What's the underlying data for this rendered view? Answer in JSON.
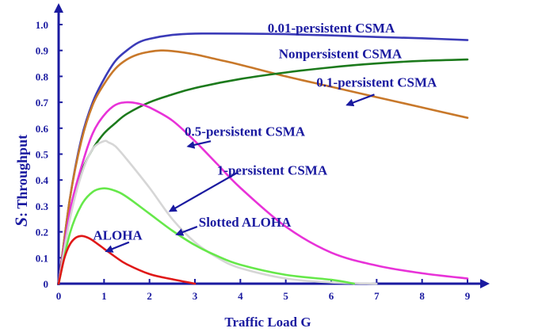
{
  "chart_data": {
    "type": "line",
    "xlabel": "Traffic Load G",
    "ylabel_s": "S",
    "ylabel_rest": ": Throughput",
    "xlim": [
      0,
      9
    ],
    "ylim": [
      0,
      1.0
    ],
    "x_ticks": [
      "0",
      "1",
      "2",
      "3",
      "4",
      "5",
      "6",
      "7",
      "8",
      "9"
    ],
    "y_ticks": [
      "0",
      "0.1",
      "0.2",
      "0.3",
      "0.4",
      "0.5",
      "0.6",
      "0.7",
      "0.8",
      "0.9",
      "1.0"
    ],
    "grid": false,
    "series": [
      {
        "id": "p001",
        "color": "#3b3bb8",
        "x": [
          0,
          0.25,
          0.5,
          0.75,
          1.0,
          1.25,
          1.5,
          1.75,
          2.0,
          2.5,
          3.0,
          4.0,
          5.0,
          6.0,
          7.0,
          8.0,
          9.0
        ],
        "y": [
          0,
          0.33,
          0.56,
          0.7,
          0.79,
          0.86,
          0.9,
          0.93,
          0.945,
          0.96,
          0.965,
          0.965,
          0.963,
          0.958,
          0.952,
          0.947,
          0.94
        ]
      },
      {
        "id": "nonpersistent",
        "color": "#c8782a",
        "x": [
          0,
          0.25,
          0.5,
          0.75,
          1.0,
          1.25,
          1.5,
          1.75,
          2.0,
          2.25,
          2.5,
          3.0,
          3.5,
          4.0,
          5.0,
          6.0,
          7.0,
          8.0,
          9.0
        ],
        "y": [
          0,
          0.33,
          0.55,
          0.69,
          0.77,
          0.83,
          0.865,
          0.885,
          0.895,
          0.9,
          0.898,
          0.885,
          0.865,
          0.845,
          0.8,
          0.76,
          0.72,
          0.68,
          0.64
        ]
      },
      {
        "id": "p01",
        "color": "#1c7a1c",
        "x": [
          0,
          0.25,
          0.5,
          0.75,
          1.0,
          1.25,
          1.5,
          2.0,
          2.5,
          3.0,
          4.0,
          5.0,
          6.0,
          7.0,
          8.0,
          9.0
        ],
        "y": [
          0,
          0.28,
          0.43,
          0.52,
          0.58,
          0.62,
          0.655,
          0.7,
          0.73,
          0.755,
          0.79,
          0.815,
          0.835,
          0.85,
          0.86,
          0.865
        ]
      },
      {
        "id": "p05",
        "color": "#e832d8",
        "x": [
          0,
          0.25,
          0.5,
          0.75,
          1.0,
          1.25,
          1.5,
          1.75,
          2.0,
          2.5,
          3.0,
          3.5,
          4.0,
          5.0,
          6.0,
          7.0,
          8.0,
          9.0
        ],
        "y": [
          0,
          0.28,
          0.45,
          0.58,
          0.65,
          0.69,
          0.7,
          0.695,
          0.68,
          0.63,
          0.55,
          0.46,
          0.37,
          0.22,
          0.12,
          0.07,
          0.04,
          0.02
        ]
      },
      {
        "id": "p1",
        "color": "#d6d6d6",
        "x": [
          0,
          0.25,
          0.5,
          0.75,
          1.0,
          1.1,
          1.25,
          1.5,
          2.0,
          2.5,
          3.0,
          3.5,
          4.0,
          5.0,
          6.0,
          7.0
        ],
        "y": [
          0,
          0.25,
          0.42,
          0.52,
          0.55,
          0.545,
          0.53,
          0.48,
          0.37,
          0.25,
          0.16,
          0.1,
          0.06,
          0.02,
          0.005,
          0
        ]
      },
      {
        "id": "slotted",
        "color": "#66e84a",
        "x": [
          0,
          0.25,
          0.5,
          0.75,
          1.0,
          1.25,
          1.5,
          2.0,
          2.5,
          3.0,
          3.5,
          4.0,
          5.0,
          6.0,
          6.5
        ],
        "y": [
          0,
          0.195,
          0.303,
          0.354,
          0.368,
          0.358,
          0.335,
          0.27,
          0.205,
          0.149,
          0.106,
          0.073,
          0.034,
          0.015,
          0
        ]
      },
      {
        "id": "aloha",
        "color": "#e01818",
        "x": [
          0,
          0.125,
          0.25,
          0.375,
          0.5,
          0.625,
          0.75,
          1.0,
          1.25,
          1.5,
          2.0,
          2.5,
          3.0
        ],
        "y": [
          0,
          0.098,
          0.152,
          0.177,
          0.184,
          0.179,
          0.167,
          0.135,
          0.103,
          0.075,
          0.037,
          0.017,
          0
        ]
      }
    ],
    "labels": [
      {
        "text": "0.01-persistent CSMA",
        "x": 6.0,
        "y": 0.97
      },
      {
        "text": "Nonpersistent CSMA",
        "x": 6.2,
        "y": 0.87
      },
      {
        "text": "0.1-persistent CSMA",
        "x": 7.0,
        "y": 0.76
      },
      {
        "text": "0.5-persistent CSMA",
        "x": 4.1,
        "y": 0.57
      },
      {
        "text": "1-persistent CSMA",
        "x": 4.7,
        "y": 0.42
      },
      {
        "text": "Slotted ALOHA",
        "x": 4.1,
        "y": 0.22
      },
      {
        "text": "ALOHA",
        "x": 1.3,
        "y": 0.17
      }
    ],
    "arrows": [
      {
        "from": [
          6.95,
          0.73
        ],
        "to": [
          6.35,
          0.69
        ]
      },
      {
        "from": [
          3.35,
          0.55
        ],
        "to": [
          2.85,
          0.53
        ]
      },
      {
        "from": [
          3.95,
          0.43
        ],
        "to": [
          2.45,
          0.28
        ]
      },
      {
        "from": [
          3.05,
          0.22
        ],
        "to": [
          2.6,
          0.19
        ]
      },
      {
        "from": [
          1.55,
          0.16
        ],
        "to": [
          1.05,
          0.125
        ]
      }
    ]
  }
}
